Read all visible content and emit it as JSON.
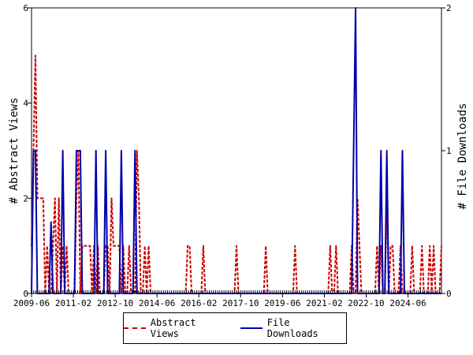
{
  "chart_data": {
    "type": "line",
    "x_start": "2009-06",
    "x_end": "2025-10",
    "x_tick_labels": [
      "2009-06",
      "2011-02",
      "2012-10",
      "2014-06",
      "2016-02",
      "2017-10",
      "2019-06",
      "2021-02",
      "2022-10",
      "2024-06"
    ],
    "ylabel_left": "# Abstract Views",
    "ylabel_right": "# File Downloads",
    "ylim_left": [
      0,
      6
    ],
    "ylim_right": [
      0,
      2
    ],
    "y_ticks_left": [
      "0",
      "2",
      "4",
      "6"
    ],
    "y_ticks_right": [
      "0",
      "1",
      "2"
    ],
    "grid": false,
    "legend_position": "bottom-center",
    "series": [
      {
        "name": "Abstract Views",
        "color": "#cc0000",
        "style": "dashed",
        "axis": "left",
        "values": [
          1,
          3,
          5,
          2,
          2,
          2,
          2,
          0,
          1,
          0,
          0,
          1,
          2,
          0,
          2,
          0,
          1,
          0,
          1,
          0,
          0,
          0,
          0,
          2,
          3,
          0,
          1,
          1,
          1,
          1,
          1,
          0,
          1,
          0,
          1,
          0,
          0,
          0,
          1,
          1,
          0,
          2,
          1,
          1,
          1,
          1,
          0,
          1,
          0,
          0,
          1,
          0,
          0,
          0,
          3,
          2,
          0,
          0,
          1,
          0,
          1,
          0,
          0,
          0,
          0,
          0,
          0,
          0,
          0,
          0,
          0,
          0,
          0,
          0,
          0,
          0,
          0,
          0,
          0,
          0,
          1,
          1,
          0,
          0,
          0,
          0,
          0,
          0,
          1,
          0,
          0,
          0,
          0,
          0,
          0,
          0,
          0,
          0,
          0,
          0,
          0,
          0,
          0,
          0,
          0,
          1,
          0,
          0,
          0,
          0,
          0,
          0,
          0,
          0,
          0,
          0,
          0,
          0,
          0,
          0,
          1,
          0,
          0,
          0,
          0,
          0,
          0,
          0,
          0,
          0,
          0,
          0,
          0,
          0,
          0,
          1,
          0,
          0,
          0,
          0,
          0,
          0,
          0,
          0,
          0,
          0,
          0,
          0,
          0,
          0,
          0,
          0,
          0,
          1,
          0,
          0,
          1,
          0,
          0,
          0,
          0,
          0,
          0,
          0,
          1,
          0,
          0,
          2,
          1,
          0,
          0,
          0,
          0,
          0,
          0,
          0,
          0,
          1,
          0,
          1,
          0,
          0,
          2,
          0,
          1,
          1,
          0,
          0,
          0,
          1,
          0,
          0,
          0,
          0,
          0,
          1,
          0,
          0,
          0,
          0,
          1,
          0,
          0,
          0,
          1,
          0,
          1,
          0,
          0,
          0,
          1
        ]
      },
      {
        "name": "File Downloads",
        "color": "#0000aa",
        "style": "solid",
        "axis": "right",
        "values": [
          0,
          1,
          1,
          0,
          0,
          0,
          0,
          0,
          0,
          0,
          0.5,
          0,
          0,
          0,
          0,
          0,
          1,
          0,
          0,
          0,
          0,
          0,
          0,
          1,
          1,
          1,
          0,
          0,
          0,
          0,
          0,
          0,
          0,
          1,
          0,
          0,
          0,
          0,
          1,
          0,
          0,
          0,
          0,
          0,
          0,
          0,
          1,
          0,
          0,
          0,
          0,
          0,
          0,
          1,
          0,
          0,
          0,
          0,
          0,
          0,
          0,
          0,
          0,
          0,
          0,
          0,
          0,
          0,
          0,
          0,
          0,
          0,
          0,
          0,
          0,
          0,
          0,
          0,
          0,
          0,
          0,
          0,
          0,
          0,
          0,
          0,
          0,
          0,
          0,
          0,
          0,
          0,
          0,
          0,
          0,
          0,
          0,
          0,
          0,
          0,
          0,
          0,
          0,
          0,
          0,
          0,
          0,
          0,
          0,
          0,
          0,
          0,
          0,
          0,
          0,
          0,
          0,
          0,
          0,
          0,
          0,
          0,
          0,
          0,
          0,
          0,
          0,
          0,
          0,
          0,
          0,
          0,
          0,
          0,
          0,
          0,
          0,
          0,
          0,
          0,
          0,
          0,
          0,
          0,
          0,
          0,
          0,
          0,
          0,
          0,
          0,
          0,
          0,
          0,
          0,
          0,
          0,
          0,
          0,
          0,
          0,
          0,
          0,
          0,
          0,
          1,
          2,
          0,
          0,
          0,
          0,
          0,
          0,
          0,
          0,
          0,
          0,
          0,
          0,
          1,
          0,
          0,
          1,
          0,
          0,
          0,
          0,
          0,
          0,
          0,
          1,
          0,
          0,
          0,
          0,
          0,
          0,
          0,
          0,
          0,
          0,
          0,
          0,
          0,
          0,
          0,
          0,
          0,
          0,
          0,
          0
        ]
      }
    ]
  }
}
